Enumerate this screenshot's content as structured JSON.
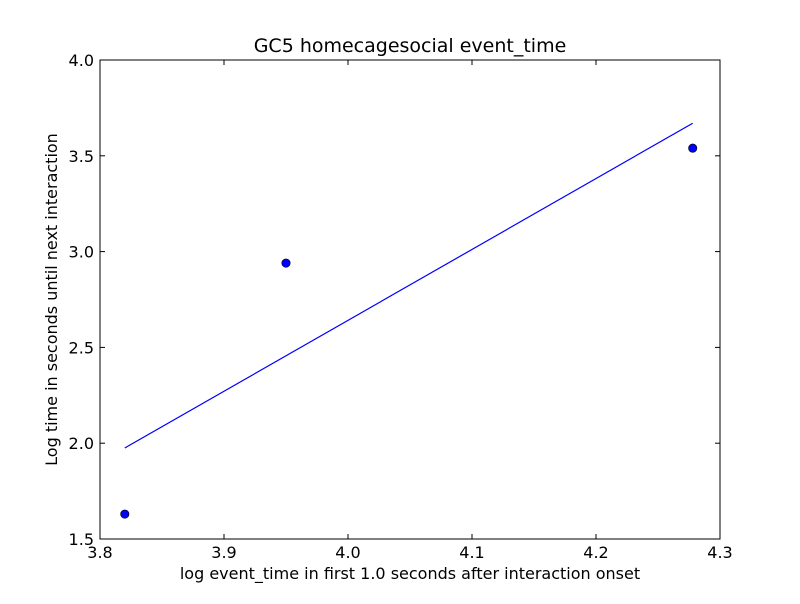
{
  "chart_data": {
    "type": "scatter",
    "title": "GC5 homecagesocial event_time",
    "xlabel": "log event_time in first 1.0 seconds after interaction onset",
    "ylabel": "Log time in seconds until next interaction",
    "xlim": [
      3.8,
      4.3
    ],
    "ylim": [
      1.5,
      4.0
    ],
    "x_ticks": [
      3.8,
      3.9,
      4.0,
      4.1,
      4.2,
      4.3
    ],
    "x_tick_labels": [
      "3.8",
      "3.9",
      "4.0",
      "4.1",
      "4.2",
      "4.3"
    ],
    "y_ticks": [
      1.5,
      2.0,
      2.5,
      3.0,
      3.5,
      4.0
    ],
    "y_tick_labels": [
      "1.5",
      "2.0",
      "2.5",
      "3.0",
      "3.5",
      "4.0"
    ],
    "grid": false,
    "legend": "none",
    "series": [
      {
        "kind": "points",
        "color": "#0000ff",
        "x": [
          3.82,
          3.95,
          4.278
        ],
        "y": [
          1.63,
          2.94,
          3.54
        ]
      },
      {
        "kind": "fit-line",
        "color": "#0000ff",
        "x": [
          3.82,
          4.278
        ],
        "y": [
          1.975,
          3.67
        ]
      }
    ]
  }
}
